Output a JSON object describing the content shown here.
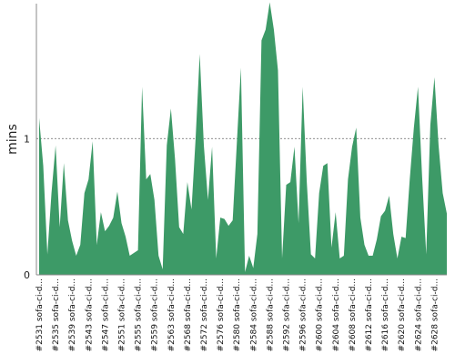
{
  "chart_data": {
    "type": "area",
    "ylabel": "mins",
    "ylim": [
      0,
      1.99
    ],
    "yticks": [
      0,
      1
    ],
    "reference_line": 1,
    "color": "#3d9a67",
    "x": [
      2531,
      2532,
      2533,
      2534,
      2535,
      2536,
      2537,
      2538,
      2539,
      2540,
      2541,
      2542,
      2543,
      2544,
      2545,
      2546,
      2547,
      2548,
      2549,
      2550,
      2551,
      2552,
      2553,
      2554,
      2555,
      2556,
      2557,
      2558,
      2559,
      2560,
      2561,
      2562,
      2563,
      2564,
      2565,
      2566,
      2568,
      2569,
      2570,
      2571,
      2572,
      2573,
      2574,
      2575,
      2576,
      2577,
      2578,
      2579,
      2580,
      2581,
      2582,
      2583,
      2584,
      2585,
      2586,
      2587,
      2588,
      2589,
      2590,
      2591,
      2592,
      2593,
      2594,
      2595,
      2596,
      2597,
      2598,
      2599,
      2600,
      2601,
      2602,
      2603,
      2604,
      2605,
      2606,
      2607,
      2608,
      2609,
      2610,
      2611,
      2612,
      2613,
      2614,
      2615,
      2616,
      2617,
      2618,
      2619,
      2620,
      2621,
      2622,
      2623,
      2624,
      2625,
      2626,
      2627,
      2628,
      2629,
      2630,
      2631
    ],
    "values": [
      1.15,
      0.8,
      0.15,
      0.6,
      0.95,
      0.35,
      0.82,
      0.4,
      0.25,
      0.14,
      0.22,
      0.6,
      0.7,
      0.98,
      0.22,
      0.46,
      0.32,
      0.36,
      0.42,
      0.61,
      0.38,
      0.28,
      0.14,
      0.16,
      0.18,
      1.38,
      0.7,
      0.74,
      0.55,
      0.14,
      0.04,
      0.95,
      1.22,
      0.85,
      0.35,
      0.3,
      0.68,
      0.48,
      1.0,
      1.62,
      0.95,
      0.55,
      0.94,
      0.12,
      0.42,
      0.41,
      0.36,
      0.4,
      0.96,
      1.52,
      0.02,
      0.14,
      0.05,
      0.3,
      1.72,
      1.8,
      2.0,
      1.8,
      1.5,
      0.12,
      0.66,
      0.68,
      0.94,
      0.38,
      1.38,
      0.68,
      0.15,
      0.12,
      0.6,
      0.8,
      0.82,
      0.2,
      0.46,
      0.12,
      0.14,
      0.7,
      0.94,
      1.08,
      0.42,
      0.22,
      0.14,
      0.14,
      0.26,
      0.43,
      0.47,
      0.58,
      0.3,
      0.12,
      0.28,
      0.27,
      0.7,
      1.08,
      1.38,
      0.72,
      0.15,
      1.1,
      1.45,
      0.95,
      0.6,
      0.45
    ],
    "tick_labels": [
      "#2531 sofa-ci-d...",
      "#2535 sofa-ci-d...",
      "#2539 sofa-ci-d...",
      "#2543 sofa-ci-d...",
      "#2547 sofa-ci-d...",
      "#2551 sofa-ci-d...",
      "#2555 sofa-ci-d...",
      "#2559 sofa-ci-d...",
      "#2563 sofa-ci-d...",
      "#2568 sofa-ci-d...",
      "#2572 sofa-ci-d...",
      "#2576 sofa-ci-d...",
      "#2580 sofa-ci-d...",
      "#2584 sofa-ci-d...",
      "#2588 sofa-ci-d...",
      "#2592 sofa-ci-d...",
      "#2596 sofa-ci-d...",
      "#2600 sofa-ci-d...",
      "#2604 sofa-ci-d...",
      "#2608 sofa-ci-d...",
      "#2612 sofa-ci-d...",
      "#2616 sofa-ci-d...",
      "#2620 sofa-ci-d...",
      "#2624 sofa-ci-d...",
      "#2628 sofa-ci-d..."
    ]
  }
}
